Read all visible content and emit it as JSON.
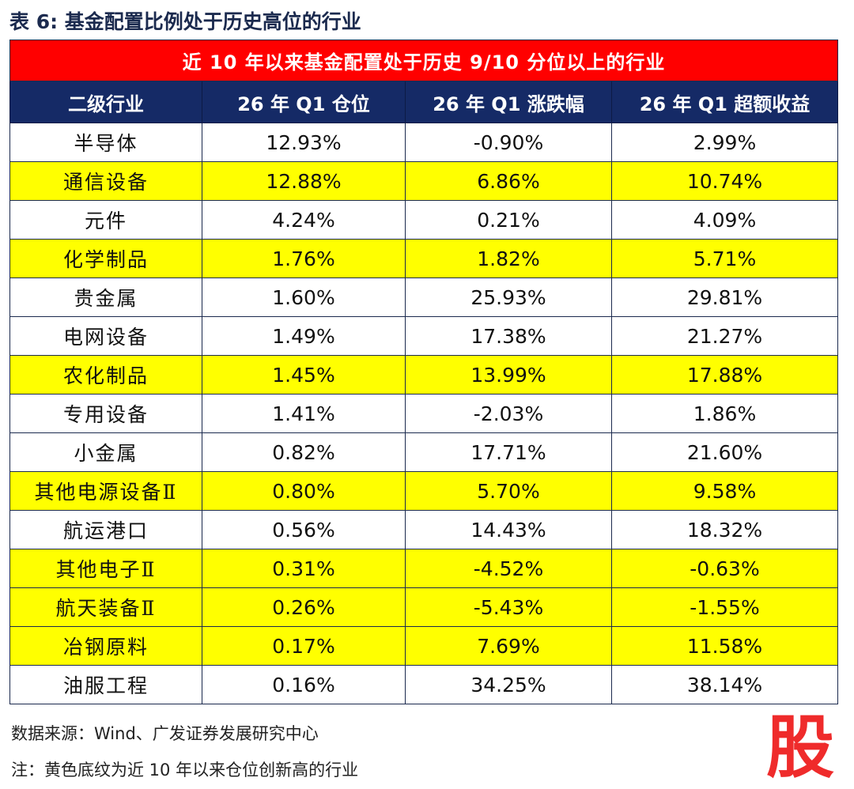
{
  "caption": "表 6:  基金配置比例处于历史高位的行业",
  "banner": "近 10 年以来基金配置处于历史 9/10 分位以上的行业",
  "headers": [
    "二级行业",
    "26 年 Q1 仓位",
    "26 年 Q1 涨跌幅",
    "26 年 Q1 超额收益"
  ],
  "rows": [
    {
      "industry": "半导体",
      "position": "12.93%",
      "change": "-0.90%",
      "excess": "2.99%",
      "highlight": false
    },
    {
      "industry": "通信设备",
      "position": "12.88%",
      "change": "6.86%",
      "excess": "10.74%",
      "highlight": true
    },
    {
      "industry": "元件",
      "position": "4.24%",
      "change": "0.21%",
      "excess": "4.09%",
      "highlight": false
    },
    {
      "industry": "化学制品",
      "position": "1.76%",
      "change": "1.82%",
      "excess": "5.71%",
      "highlight": true
    },
    {
      "industry": "贵金属",
      "position": "1.60%",
      "change": "25.93%",
      "excess": "29.81%",
      "highlight": false
    },
    {
      "industry": "电网设备",
      "position": "1.49%",
      "change": "17.38%",
      "excess": "21.27%",
      "highlight": false
    },
    {
      "industry": "农化制品",
      "position": "1.45%",
      "change": "13.99%",
      "excess": "17.88%",
      "highlight": true
    },
    {
      "industry": "专用设备",
      "position": "1.41%",
      "change": "-2.03%",
      "excess": "1.86%",
      "highlight": false
    },
    {
      "industry": "小金属",
      "position": "0.82%",
      "change": "17.71%",
      "excess": "21.60%",
      "highlight": false
    },
    {
      "industry": "其他电源设备Ⅱ",
      "position": "0.80%",
      "change": "5.70%",
      "excess": "9.58%",
      "highlight": true
    },
    {
      "industry": "航运港口",
      "position": "0.56%",
      "change": "14.43%",
      "excess": "18.32%",
      "highlight": false
    },
    {
      "industry": "其他电子Ⅱ",
      "position": "0.31%",
      "change": "-4.52%",
      "excess": "-0.63%",
      "highlight": true
    },
    {
      "industry": "航天装备Ⅱ",
      "position": "0.26%",
      "change": "-5.43%",
      "excess": "-1.55%",
      "highlight": true
    },
    {
      "industry": "冶钢原料",
      "position": "0.17%",
      "change": "7.69%",
      "excess": "11.58%",
      "highlight": true
    },
    {
      "industry": "油服工程",
      "position": "0.16%",
      "change": "34.25%",
      "excess": "38.14%",
      "highlight": false
    }
  ],
  "source": "数据来源：Wind、广发证券发展研究中心",
  "note": "注：黄色底纹为近 10 年以来仓位创新高的行业",
  "logo_text": "股",
  "colors": {
    "banner": "#ff0000",
    "header": "#152a66",
    "highlight": "#ffff00",
    "logo": "#ef2b2b"
  }
}
